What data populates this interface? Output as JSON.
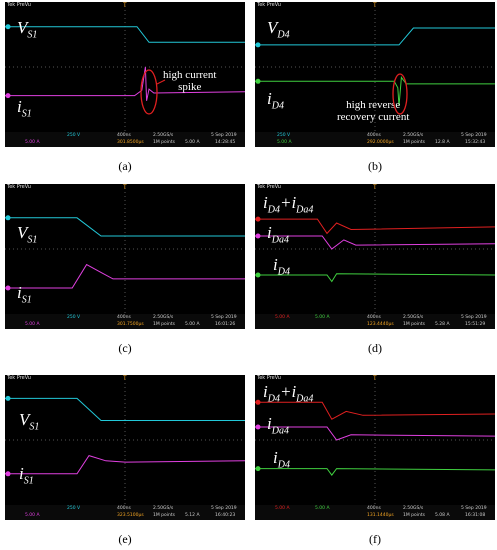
{
  "panels": [
    {
      "caption": "(a)",
      "signals": [
        "V_S1",
        "i_S1"
      ],
      "traces": [
        {
          "name": "V_S1",
          "color": "#22c8d8",
          "points": [
            [
              0,
              0.19
            ],
            [
              0.55,
              0.19
            ],
            [
              0.6,
              0.31
            ],
            [
              1,
              0.31
            ]
          ]
        },
        {
          "name": "i_S1",
          "color": "#e040e0",
          "points": [
            [
              0,
              0.72
            ],
            [
              0.54,
              0.72
            ],
            [
              0.57,
              0.68
            ],
            [
              0.585,
              0.5
            ],
            [
              0.59,
              0.76
            ],
            [
              0.6,
              0.67
            ],
            [
              0.62,
              0.7
            ],
            [
              1,
              0.69
            ]
          ]
        }
      ],
      "annotation": "high current\nspike",
      "status": {
        "ch1": "250 V",
        "ch2": "5.00 A",
        "time": "400ns",
        "rate": "2.50GS/s",
        "points": "1M points",
        "trig": "5.00 A",
        "date": "5 Sep 2019",
        "clock": "14:28:45",
        "pos": "301.8500µs"
      }
    },
    {
      "caption": "(b)",
      "signals": [
        "V_D4",
        "i_D4"
      ],
      "traces": [
        {
          "name": "V_D4",
          "color": "#22c8d8",
          "points": [
            [
              0,
              0.33
            ],
            [
              0.6,
              0.33
            ],
            [
              0.66,
              0.2
            ],
            [
              1,
              0.2
            ]
          ]
        },
        {
          "name": "i_D4",
          "color": "#40d040",
          "points": [
            [
              0,
              0.61
            ],
            [
              0.58,
              0.61
            ],
            [
              0.595,
              0.66
            ],
            [
              0.6,
              0.8
            ],
            [
              0.61,
              0.58
            ],
            [
              0.63,
              0.63
            ],
            [
              1,
              0.63
            ]
          ]
        }
      ],
      "annotation": "high reverse\nrecovery current",
      "status": {
        "ch1": "250 V",
        "ch2": "5.00 A",
        "time": "400ns",
        "rate": "2.50GS/s",
        "points": "1M points",
        "trig": "12.8 A",
        "date": "5 Sep 2019",
        "clock": "15:32:43",
        "pos": "292.0000µs"
      }
    },
    {
      "caption": "(c)",
      "signals": [
        "V_S1",
        "i_S1"
      ],
      "traces": [
        {
          "name": "V_S1",
          "color": "#22c8d8",
          "points": [
            [
              0,
              0.26
            ],
            [
              0.3,
              0.26
            ],
            [
              0.4,
              0.4
            ],
            [
              1,
              0.4
            ]
          ]
        },
        {
          "name": "i_S1",
          "color": "#e040e0",
          "points": [
            [
              0,
              0.8
            ],
            [
              0.28,
              0.8
            ],
            [
              0.34,
              0.62
            ],
            [
              0.4,
              0.68
            ],
            [
              0.45,
              0.73
            ],
            [
              1,
              0.73
            ]
          ]
        }
      ],
      "annotation": "",
      "status": {
        "ch1": "250 V",
        "ch2": "5.00 A",
        "time": "400ns",
        "rate": "2.50GS/s",
        "points": "1M points",
        "trig": "5.00 A",
        "date": "5 Sep 2019",
        "clock": "16:01:26",
        "pos": "301.7500µs"
      }
    },
    {
      "caption": "(d)",
      "signals": [
        "i_D4+i_Da4",
        "i_Da4",
        "i_D4"
      ],
      "traces": [
        {
          "name": "i_D4+i_Da4",
          "color": "#e02020",
          "points": [
            [
              0,
              0.27
            ],
            [
              0.26,
              0.27
            ],
            [
              0.3,
              0.38
            ],
            [
              0.34,
              0.3
            ],
            [
              0.4,
              0.35
            ],
            [
              1,
              0.33
            ]
          ]
        },
        {
          "name": "i_Da4",
          "color": "#e040e0",
          "points": [
            [
              0,
              0.4
            ],
            [
              0.28,
              0.4
            ],
            [
              0.32,
              0.5
            ],
            [
              0.37,
              0.43
            ],
            [
              0.42,
              0.47
            ],
            [
              1,
              0.46
            ]
          ]
        },
        {
          "name": "i_D4",
          "color": "#40d040",
          "points": [
            [
              0,
              0.7
            ],
            [
              0.3,
              0.7
            ],
            [
              0.32,
              0.75
            ],
            [
              0.34,
              0.69
            ],
            [
              1,
              0.7
            ]
          ]
        }
      ],
      "annotation": "",
      "status": {
        "ch1": "5.00 A",
        "ch2": "5.00 A",
        "time": "400ns",
        "rate": "2.50GS/s",
        "points": "1M points",
        "trig": "5.28 A",
        "date": "5 Sep 2019",
        "clock": "15:51:29",
        "pos": "123.4440µs"
      }
    },
    {
      "caption": "(e)",
      "signals": [
        "V_S1",
        "i_S1"
      ],
      "traces": [
        {
          "name": "V_S1",
          "color": "#22c8d8",
          "points": [
            [
              0,
              0.18
            ],
            [
              0.3,
              0.18
            ],
            [
              0.4,
              0.35
            ],
            [
              1,
              0.35
            ]
          ]
        },
        {
          "name": "i_S1",
          "color": "#e040e0",
          "points": [
            [
              0,
              0.76
            ],
            [
              0.3,
              0.76
            ],
            [
              0.35,
              0.62
            ],
            [
              0.42,
              0.66
            ],
            [
              0.5,
              0.67
            ],
            [
              1,
              0.66
            ]
          ]
        }
      ],
      "annotation": "",
      "status": {
        "ch1": "250 V",
        "ch2": "5.00 A",
        "time": "400ns",
        "rate": "2.50GS/s",
        "points": "1M points",
        "trig": "5.12 A",
        "date": "5 Sep 2019",
        "clock": "16:40:23",
        "pos": "323.5100µs"
      }
    },
    {
      "caption": "(f)",
      "signals": [
        "i_D4+i_Da4",
        "i_Da4",
        "i_D4"
      ],
      "traces": [
        {
          "name": "i_D4+i_Da4",
          "color": "#e02020",
          "points": [
            [
              0,
              0.21
            ],
            [
              0.28,
              0.21
            ],
            [
              0.32,
              0.34
            ],
            [
              0.38,
              0.28
            ],
            [
              0.45,
              0.31
            ],
            [
              1,
              0.3
            ]
          ]
        },
        {
          "name": "i_Da4",
          "color": "#e040e0",
          "points": [
            [
              0,
              0.4
            ],
            [
              0.3,
              0.4
            ],
            [
              0.34,
              0.5
            ],
            [
              0.4,
              0.46
            ],
            [
              1,
              0.47
            ]
          ]
        },
        {
          "name": "i_D4",
          "color": "#40d040",
          "points": [
            [
              0,
              0.72
            ],
            [
              0.3,
              0.72
            ],
            [
              0.32,
              0.77
            ],
            [
              0.34,
              0.72
            ],
            [
              1,
              0.73
            ]
          ]
        }
      ],
      "annotation": "",
      "status": {
        "ch1": "5.00 A",
        "ch2": "5.00 A",
        "time": "400ns",
        "rate": "2.50GS/s",
        "points": "1M points",
        "trig": "5.08 A",
        "date": "5 Sep 2019",
        "clock": "16:31:08",
        "pos": "131.1440µs"
      }
    }
  ],
  "brand": "Tek PreVu",
  "trigger_marker": "T",
  "chart_data": [
    {
      "type": "line",
      "panel": "(a)",
      "series": [
        {
          "name": "V_S1"
        },
        {
          "name": "i_S1"
        }
      ]
    },
    {
      "type": "line",
      "panel": "(b)",
      "series": [
        {
          "name": "V_D4"
        },
        {
          "name": "i_D4"
        }
      ]
    },
    {
      "type": "line",
      "panel": "(c)",
      "series": [
        {
          "name": "V_S1"
        },
        {
          "name": "i_S1"
        }
      ]
    },
    {
      "type": "line",
      "panel": "(d)",
      "series": [
        {
          "name": "i_D4+i_Da4"
        },
        {
          "name": "i_Da4"
        },
        {
          "name": "i_D4"
        }
      ]
    },
    {
      "type": "line",
      "panel": "(e)",
      "series": [
        {
          "name": "V_S1"
        },
        {
          "name": "i_S1"
        }
      ]
    },
    {
      "type": "line",
      "panel": "(f)",
      "series": [
        {
          "name": "i_D4+i_Da4"
        },
        {
          "name": "i_Da4"
        },
        {
          "name": "i_D4"
        }
      ]
    }
  ]
}
